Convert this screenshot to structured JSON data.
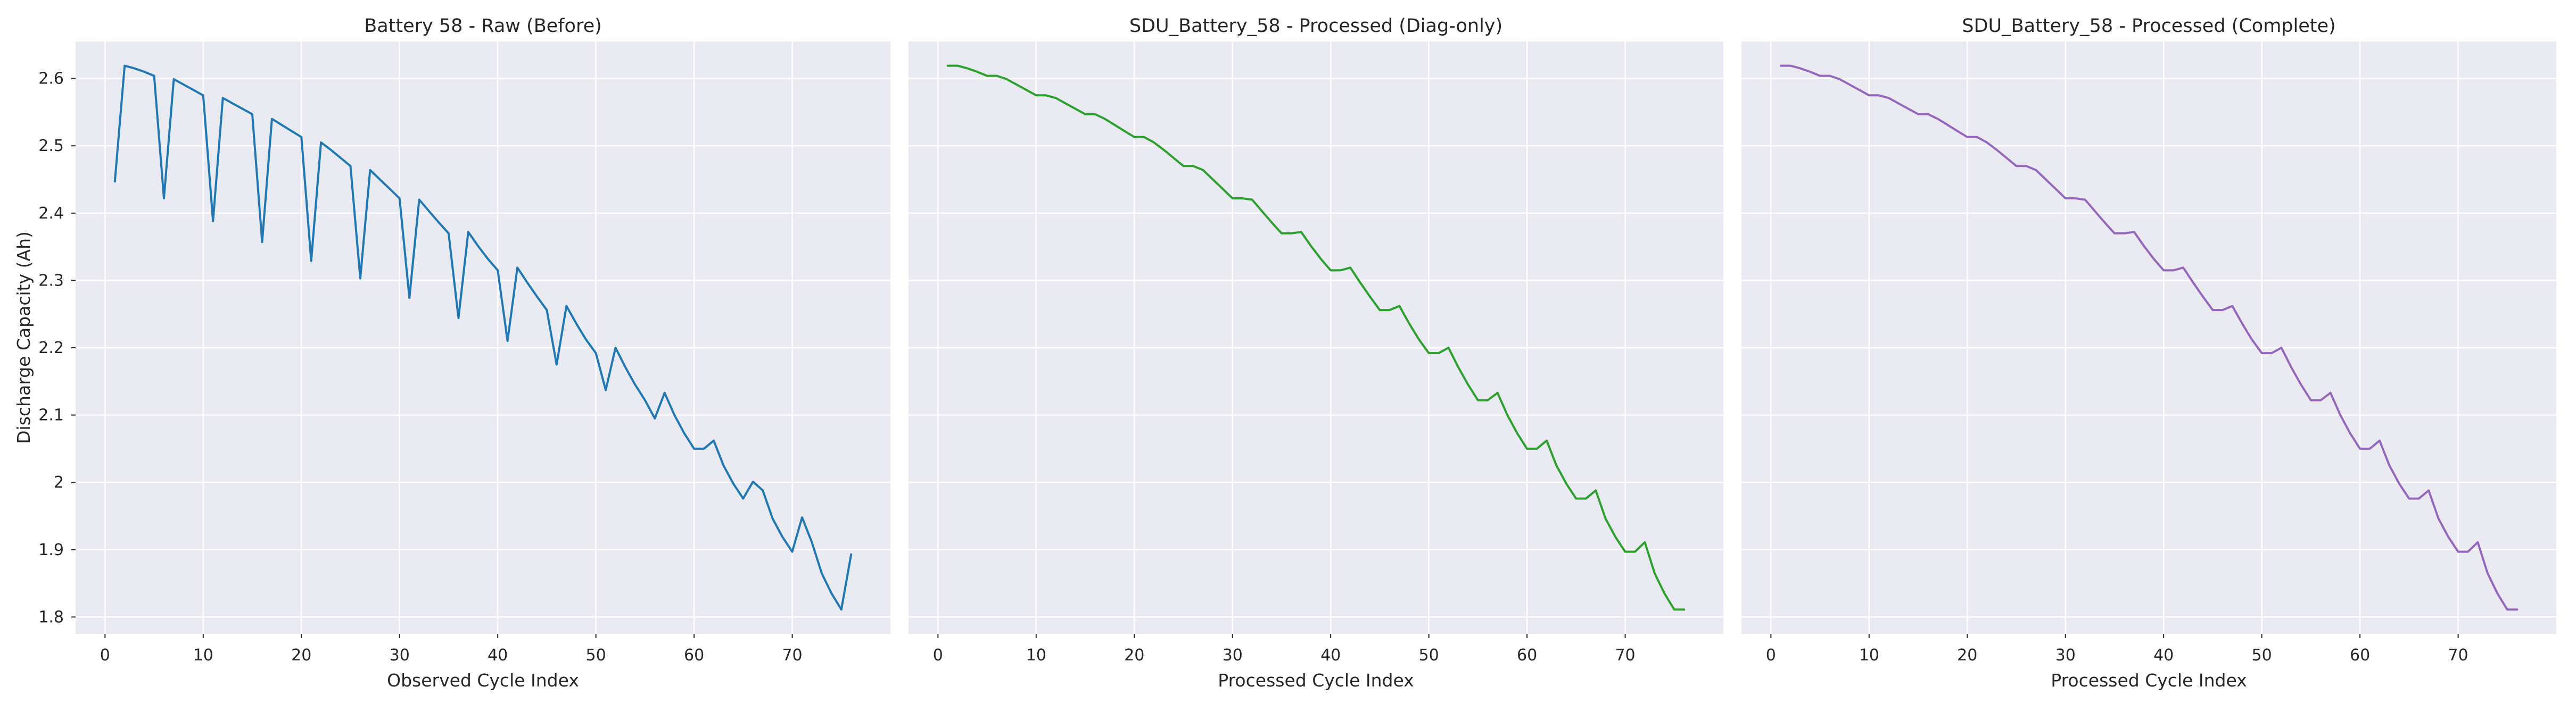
{
  "figure": {
    "background": "#ffffff",
    "plot_background": "#eaeaf2",
    "grid_color": "#ffffff"
  },
  "chart_data": [
    {
      "type": "line",
      "title": "Battery 58 - Raw (Before)",
      "xlabel": "Observed Cycle Index",
      "ylabel": "Discharge Capacity (Ah)",
      "xlim": [
        -3,
        80
      ],
      "ylim": [
        1.775,
        2.655
      ],
      "xticks": [
        0,
        10,
        20,
        30,
        40,
        50,
        60,
        70
      ],
      "yticks": [
        1.8,
        1.9,
        2.0,
        2.1,
        2.2,
        2.3,
        2.4,
        2.5,
        2.6
      ],
      "grid": true,
      "series": [
        {
          "color": "#1f77b4",
          "x": [
            1,
            2,
            3,
            4,
            5,
            6,
            7,
            8,
            9,
            10,
            11,
            12,
            13,
            14,
            15,
            16,
            17,
            18,
            19,
            20,
            21,
            22,
            23,
            24,
            25,
            26,
            27,
            28,
            29,
            30,
            31,
            32,
            33,
            34,
            35,
            36,
            37,
            38,
            39,
            40,
            41,
            42,
            43,
            44,
            45,
            46,
            47,
            48,
            49,
            50,
            51,
            52,
            53,
            54,
            55,
            56,
            57,
            58,
            59,
            60,
            61,
            62,
            63,
            64,
            65,
            66,
            67,
            68,
            69,
            70,
            71,
            72,
            73,
            74,
            75,
            76
          ],
          "y": [
            2.447,
            2.619,
            2.615,
            2.61,
            2.604,
            2.422,
            2.599,
            2.591,
            2.583,
            2.575,
            2.388,
            2.571,
            2.563,
            2.555,
            2.547,
            2.357,
            2.54,
            2.531,
            2.522,
            2.513,
            2.329,
            2.505,
            2.494,
            2.482,
            2.47,
            2.303,
            2.464,
            2.45,
            2.436,
            2.422,
            2.274,
            2.42,
            2.403,
            2.386,
            2.37,
            2.244,
            2.372,
            2.351,
            2.332,
            2.315,
            2.21,
            2.319,
            2.297,
            2.276,
            2.256,
            2.175,
            2.262,
            2.236,
            2.212,
            2.192,
            2.137,
            2.2,
            2.171,
            2.145,
            2.122,
            2.095,
            2.133,
            2.1,
            2.073,
            2.05,
            2.05,
            2.062,
            2.025,
            1.998,
            1.976,
            2.001,
            1.988,
            1.946,
            1.919,
            1.897,
            1.948,
            1.911,
            1.865,
            1.835,
            1.811,
            1.893
          ]
        }
      ]
    },
    {
      "type": "line",
      "title": "SDU_Battery_58 - Processed (Diag-only)",
      "xlabel": "Processed Cycle Index",
      "ylabel": "",
      "xlim": [
        -3,
        80
      ],
      "ylim": [
        1.775,
        2.655
      ],
      "xticks": [
        0,
        10,
        20,
        30,
        40,
        50,
        60,
        70
      ],
      "yticks": [
        1.8,
        1.9,
        2.0,
        2.1,
        2.2,
        2.3,
        2.4,
        2.5,
        2.6
      ],
      "grid": true,
      "series": [
        {
          "color": "#2ca02c",
          "x": [
            1,
            2,
            3,
            4,
            5,
            6,
            7,
            8,
            9,
            10,
            11,
            12,
            13,
            14,
            15,
            16,
            17,
            18,
            19,
            20,
            21,
            22,
            23,
            24,
            25,
            26,
            27,
            28,
            29,
            30,
            31,
            32,
            33,
            34,
            35,
            36,
            37,
            38,
            39,
            40,
            41,
            42,
            43,
            44,
            45,
            46,
            47,
            48,
            49,
            50,
            51,
            52,
            53,
            54,
            55,
            56,
            57,
            58,
            59,
            60,
            61,
            62,
            63,
            64,
            65,
            66,
            67,
            68,
            69,
            70,
            71,
            72,
            73,
            74,
            75,
            76
          ],
          "y": [
            2.619,
            2.619,
            2.615,
            2.61,
            2.604,
            2.604,
            2.599,
            2.591,
            2.583,
            2.575,
            2.575,
            2.571,
            2.563,
            2.555,
            2.547,
            2.547,
            2.54,
            2.531,
            2.522,
            2.513,
            2.513,
            2.505,
            2.494,
            2.482,
            2.47,
            2.47,
            2.464,
            2.45,
            2.436,
            2.422,
            2.422,
            2.42,
            2.403,
            2.386,
            2.37,
            2.37,
            2.372,
            2.351,
            2.332,
            2.315,
            2.315,
            2.319,
            2.297,
            2.276,
            2.256,
            2.256,
            2.262,
            2.236,
            2.212,
            2.192,
            2.192,
            2.2,
            2.171,
            2.145,
            2.122,
            2.122,
            2.133,
            2.1,
            2.073,
            2.05,
            2.05,
            2.062,
            2.025,
            1.998,
            1.976,
            1.976,
            1.988,
            1.946,
            1.919,
            1.897,
            1.897,
            1.911,
            1.865,
            1.835,
            1.811,
            1.811
          ]
        }
      ]
    },
    {
      "type": "line",
      "title": "SDU_Battery_58 - Processed (Complete)",
      "xlabel": "Processed Cycle Index",
      "ylabel": "",
      "xlim": [
        -3,
        80
      ],
      "ylim": [
        1.775,
        2.655
      ],
      "xticks": [
        0,
        10,
        20,
        30,
        40,
        50,
        60,
        70
      ],
      "yticks": [
        1.8,
        1.9,
        2.0,
        2.1,
        2.2,
        2.3,
        2.4,
        2.5,
        2.6
      ],
      "grid": true,
      "series": [
        {
          "color": "#9467bd",
          "x": [
            1,
            2,
            3,
            4,
            5,
            6,
            7,
            8,
            9,
            10,
            11,
            12,
            13,
            14,
            15,
            16,
            17,
            18,
            19,
            20,
            21,
            22,
            23,
            24,
            25,
            26,
            27,
            28,
            29,
            30,
            31,
            32,
            33,
            34,
            35,
            36,
            37,
            38,
            39,
            40,
            41,
            42,
            43,
            44,
            45,
            46,
            47,
            48,
            49,
            50,
            51,
            52,
            53,
            54,
            55,
            56,
            57,
            58,
            59,
            60,
            61,
            62,
            63,
            64,
            65,
            66,
            67,
            68,
            69,
            70,
            71,
            72,
            73,
            74,
            75,
            76
          ],
          "y": [
            2.619,
            2.619,
            2.615,
            2.61,
            2.604,
            2.604,
            2.599,
            2.591,
            2.583,
            2.575,
            2.575,
            2.571,
            2.563,
            2.555,
            2.547,
            2.547,
            2.54,
            2.531,
            2.522,
            2.513,
            2.513,
            2.505,
            2.494,
            2.482,
            2.47,
            2.47,
            2.464,
            2.45,
            2.436,
            2.422,
            2.422,
            2.42,
            2.403,
            2.386,
            2.37,
            2.37,
            2.372,
            2.351,
            2.332,
            2.315,
            2.315,
            2.319,
            2.297,
            2.276,
            2.256,
            2.256,
            2.262,
            2.236,
            2.212,
            2.192,
            2.192,
            2.2,
            2.171,
            2.145,
            2.122,
            2.122,
            2.133,
            2.1,
            2.073,
            2.05,
            2.05,
            2.062,
            2.025,
            1.998,
            1.976,
            1.976,
            1.988,
            1.946,
            1.919,
            1.897,
            1.897,
            1.911,
            1.865,
            1.835,
            1.811,
            1.811
          ]
        }
      ]
    }
  ]
}
